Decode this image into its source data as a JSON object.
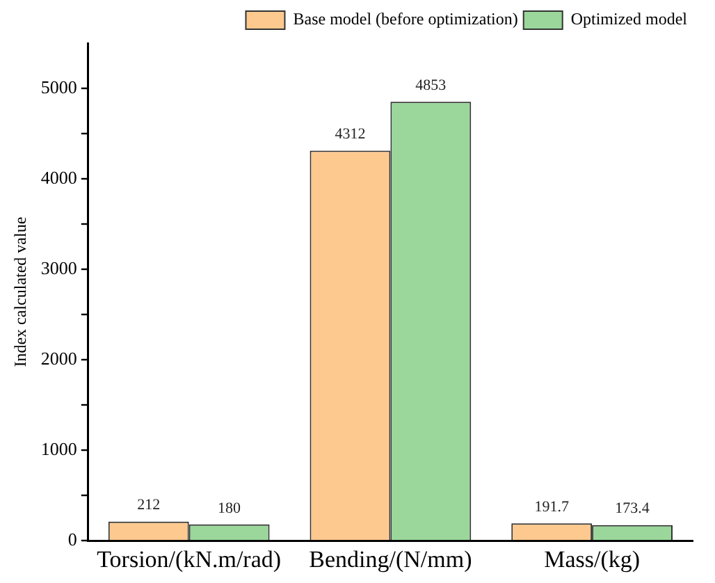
{
  "chart_data": {
    "type": "bar",
    "ylabel": "Index calculated value",
    "categories": [
      "Torsion/(kN.m/rad)",
      "Bending/(N/mm)",
      "Mass/(kg)"
    ],
    "series": [
      {
        "name": "Base model (before optimization)",
        "color": "#fdc98f",
        "values": [
          212,
          4312,
          191.7
        ]
      },
      {
        "name": "Optimized model",
        "color": "#9bd79b",
        "values": [
          180,
          4853,
          173.4
        ]
      }
    ],
    "ylim": [
      0,
      5500
    ],
    "yticks": [
      0,
      {
        "value": 500,
        "label": null
      },
      1000,
      {
        "value": 1500,
        "label": null
      },
      2000,
      {
        "value": 2500,
        "label": null
      },
      3000,
      {
        "value": 3500,
        "label": null
      },
      4000,
      {
        "value": 4500,
        "label": null
      },
      5000
    ],
    "grid": false,
    "legend": "top right",
    "data_labels": true
  }
}
